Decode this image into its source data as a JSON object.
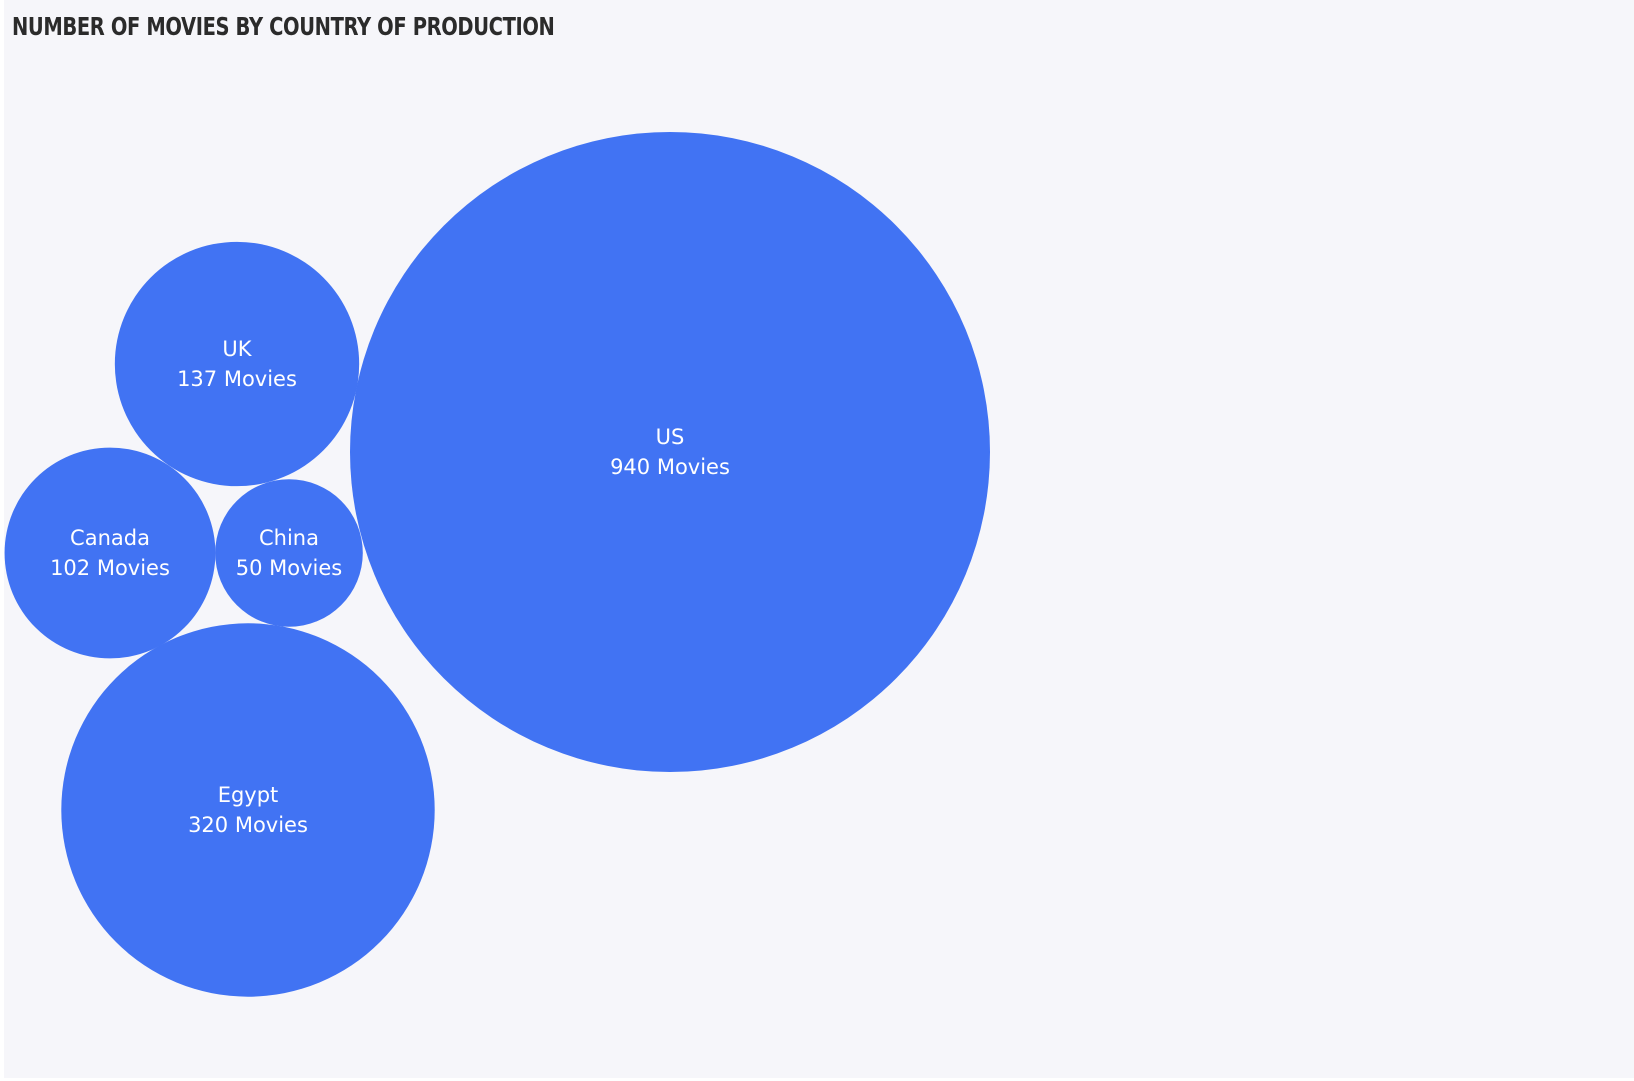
{
  "title": "NUMBER OF MOVIES BY COUNTRY OF PRODUCTION",
  "colors": {
    "bubble": "#4173f3",
    "background": "#f6f6fa",
    "label": "#ffffff"
  },
  "chart_data": {
    "type": "bubble",
    "title": "NUMBER OF MOVIES BY COUNTRY OF PRODUCTION",
    "unit_suffix": "Movies",
    "categories": [
      "US",
      "Egypt",
      "UK",
      "Canada",
      "China"
    ],
    "values": [
      940,
      320,
      137,
      102,
      50
    ],
    "labels": [
      "940 Movies",
      "320 Movies",
      "137 Movies",
      "102 Movies",
      "50 Movies"
    ]
  }
}
